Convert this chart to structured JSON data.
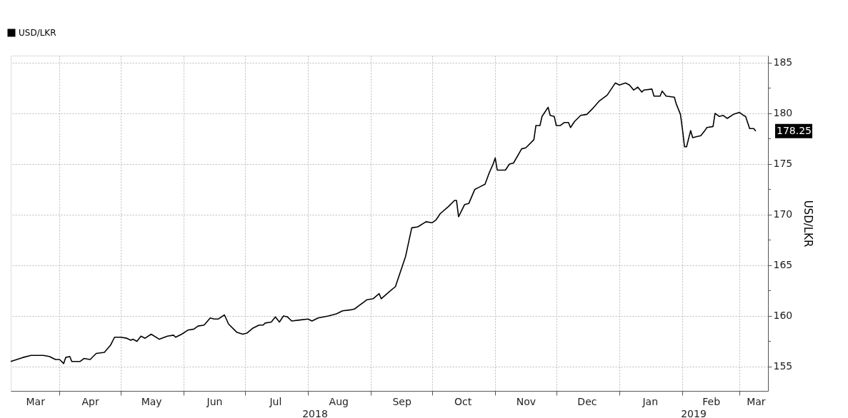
{
  "chart_data": {
    "type": "line",
    "ylabel": "USD/LKR",
    "legend": "top left",
    "grid": true,
    "line_style": "solid",
    "xlim": [
      "2018-03-08",
      "2019-03-15"
    ],
    "ylim": [
      152.6,
      185.7
    ],
    "yticks": [
      155,
      {
        "value": 157.5,
        "label": null
      },
      160,
      {
        "value": 162.5,
        "label": null
      },
      165,
      {
        "value": 167.5,
        "label": null
      },
      170,
      {
        "value": 172.5,
        "label": null
      },
      175,
      {
        "value": 177.5,
        "label": null
      },
      180,
      {
        "value": 182.5,
        "label": null
      },
      185
    ],
    "xticks": [
      {
        "value": "2018-04-01",
        "label": null
      },
      {
        "value": "2018-05-01",
        "label": null
      },
      {
        "value": "2018-06-01",
        "label": null
      },
      {
        "value": "2018-07-01",
        "label": null
      },
      {
        "value": "2018-08-01",
        "label": null
      },
      {
        "value": "2018-09-01",
        "label": null
      },
      {
        "value": "2018-10-01",
        "label": null
      },
      {
        "value": "2018-11-01",
        "label": null
      },
      {
        "value": "2018-12-01",
        "label": null
      },
      {
        "value": "2019-01-01",
        "label": null
      },
      {
        "value": "2019-02-01",
        "label": null
      },
      {
        "value": "2019-03-01",
        "label": null
      },
      {
        "value": "2018-03-20",
        "label": "Mar"
      },
      {
        "value": "2018-04-16",
        "label": "Apr"
      },
      {
        "value": "2018-05-16",
        "label": "May"
      },
      {
        "value": "2018-06-16",
        "label": "Jun"
      },
      {
        "value": "2018-07-16",
        "label": "Jul"
      },
      {
        "value": "2018-08-16",
        "label": "Aug"
      },
      {
        "value": "2018-09-16",
        "label": "Sep"
      },
      {
        "value": "2018-10-16",
        "label": "Oct"
      },
      {
        "value": "2018-11-16",
        "label": "Nov"
      },
      {
        "value": "2018-12-16",
        "label": "Dec"
      },
      {
        "value": "2019-01-16",
        "label": "Jan"
      },
      {
        "value": "2019-02-15",
        "label": "Feb"
      },
      {
        "value": "2019-03-09",
        "label": "Mar"
      }
    ],
    "annotations": [
      "2018",
      "2019",
      {
        "text": "178.25",
        "x": "2019-03-09",
        "y": 178.25
      }
    ],
    "series": [
      {
        "name": "USD/LKR",
        "color": "#000000",
        "x": [
          "2018-03-08",
          "2018-03-14",
          "2018-03-18",
          "2018-03-24",
          "2018-03-27",
          "2018-03-30",
          "2018-04-01",
          "2018-04-03",
          "2018-04-04",
          "2018-04-06",
          "2018-04-07",
          "2018-04-11",
          "2018-04-13",
          "2018-04-16",
          "2018-04-19",
          "2018-04-23",
          "2018-04-26",
          "2018-04-28",
          "2018-05-01",
          "2018-05-04",
          "2018-05-06",
          "2018-05-07",
          "2018-05-09",
          "2018-05-11",
          "2018-05-13",
          "2018-05-16",
          "2018-05-20",
          "2018-05-24",
          "2018-05-27",
          "2018-05-28",
          "2018-05-31",
          "2018-06-03",
          "2018-06-06",
          "2018-06-08",
          "2018-06-11",
          "2018-06-14",
          "2018-06-16",
          "2018-06-18",
          "2018-06-21",
          "2018-06-23",
          "2018-06-27",
          "2018-06-30",
          "2018-07-02",
          "2018-07-05",
          "2018-07-08",
          "2018-07-10",
          "2018-07-11",
          "2018-07-14",
          "2018-07-16",
          "2018-07-18",
          "2018-07-20",
          "2018-07-22",
          "2018-07-24",
          "2018-07-28",
          "2018-08-01",
          "2018-08-03",
          "2018-08-06",
          "2018-08-11",
          "2018-08-15",
          "2018-08-18",
          "2018-08-22",
          "2018-08-24",
          "2018-08-26",
          "2018-08-30",
          "2018-09-02",
          "2018-09-05",
          "2018-09-06",
          "2018-09-10",
          "2018-09-13",
          "2018-09-18",
          "2018-09-21",
          "2018-09-24",
          "2018-09-28",
          "2018-10-01",
          "2018-10-03",
          "2018-10-05",
          "2018-10-09",
          "2018-10-12",
          "2018-10-13",
          "2018-10-14",
          "2018-10-17",
          "2018-10-19",
          "2018-10-22",
          "2018-10-24",
          "2018-10-27",
          "2018-10-29",
          "2018-10-31",
          "2018-11-01",
          "2018-11-02",
          "2018-11-06",
          "2018-11-08",
          "2018-11-10",
          "2018-11-14",
          "2018-11-16",
          "2018-11-20",
          "2018-11-21",
          "2018-11-23",
          "2018-11-24",
          "2018-11-27",
          "2018-11-28",
          "2018-11-30",
          "2018-12-01",
          "2018-12-03",
          "2018-12-05",
          "2018-12-07",
          "2018-12-08",
          "2018-12-10",
          "2018-12-13",
          "2018-12-16",
          "2018-12-19",
          "2018-12-22",
          "2018-12-26",
          "2018-12-28",
          "2018-12-30",
          "2019-01-01",
          "2019-01-04",
          "2019-01-06",
          "2019-01-08",
          "2019-01-10",
          "2019-01-12",
          "2019-01-13",
          "2019-01-17",
          "2019-01-18",
          "2019-01-21",
          "2019-01-22",
          "2019-01-24",
          "2019-01-28",
          "2019-01-29",
          "2019-01-31",
          "2019-02-01",
          "2019-02-02",
          "2019-02-03",
          "2019-02-05",
          "2019-02-06",
          "2019-02-08",
          "2019-02-10",
          "2019-02-12",
          "2019-02-13",
          "2019-02-16",
          "2019-02-17",
          "2019-02-19",
          "2019-02-21",
          "2019-02-23",
          "2019-02-26",
          "2019-03-01",
          "2019-03-03",
          "2019-03-04",
          "2019-03-06",
          "2019-03-08",
          "2019-03-09"
        ],
        "values": [
          155.5,
          155.9,
          156.1,
          156.1,
          156.0,
          155.7,
          155.7,
          155.3,
          155.9,
          156.0,
          155.5,
          155.5,
          155.8,
          155.7,
          156.3,
          156.4,
          157.1,
          157.9,
          157.9,
          157.8,
          157.6,
          157.7,
          157.5,
          158.0,
          157.8,
          158.2,
          157.7,
          158.0,
          158.1,
          157.9,
          158.2,
          158.6,
          158.7,
          159.0,
          159.1,
          159.8,
          159.7,
          159.7,
          160.1,
          159.2,
          158.4,
          158.2,
          158.3,
          158.8,
          159.1,
          159.1,
          159.3,
          159.4,
          159.9,
          159.4,
          160.0,
          159.9,
          159.5,
          159.6,
          159.7,
          159.5,
          159.8,
          160.0,
          160.2,
          160.5,
          160.6,
          160.7,
          161.0,
          161.6,
          161.7,
          162.2,
          161.7,
          162.4,
          162.9,
          165.9,
          168.7,
          168.8,
          169.3,
          169.2,
          169.5,
          170.1,
          170.8,
          171.4,
          171.4,
          169.8,
          171.0,
          171.1,
          172.5,
          172.7,
          173.0,
          174.1,
          175.0,
          175.6,
          174.4,
          174.4,
          175.0,
          175.1,
          176.5,
          176.6,
          177.4,
          178.8,
          178.8,
          179.7,
          180.6,
          179.8,
          179.7,
          178.8,
          178.8,
          179.1,
          179.1,
          178.6,
          179.2,
          179.8,
          179.9,
          180.5,
          181.2,
          181.8,
          182.4,
          183.0,
          182.8,
          183.0,
          182.8,
          182.3,
          182.6,
          182.1,
          182.3,
          182.4,
          181.7,
          181.7,
          182.2,
          181.7,
          181.6,
          180.9,
          179.9,
          178.4,
          176.7,
          176.7,
          178.3,
          177.6,
          177.7,
          177.8,
          178.3,
          178.6,
          178.7,
          180.0,
          179.7,
          179.8,
          179.5,
          179.9,
          180.1,
          179.8,
          179.7,
          178.5,
          178.5,
          178.25
        ]
      }
    ]
  }
}
